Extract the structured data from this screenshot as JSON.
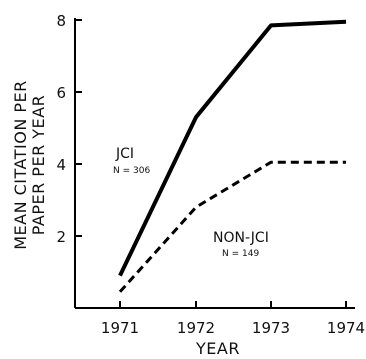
{
  "chart_data": {
    "type": "line",
    "x": [
      "1971",
      "1972",
      "1973",
      "1974"
    ],
    "xlabel": "YEAR",
    "ylabel_line1": "MEAN CITATION PER",
    "ylabel_line2": "PAPER PER YEAR",
    "ylim": [
      0,
      8
    ],
    "yticks": [
      2,
      4,
      6,
      8
    ],
    "grid": false,
    "series": [
      {
        "name": "JCI",
        "n_label": "N = 306",
        "values": [
          0.9,
          5.3,
          7.85,
          7.95
        ],
        "style": "solid",
        "color": "#000000"
      },
      {
        "name": "NON-JCI",
        "n_label": "N = 149",
        "values": [
          0.45,
          2.8,
          4.05,
          4.05
        ],
        "style": "dashed",
        "color": "#000000"
      }
    ]
  }
}
